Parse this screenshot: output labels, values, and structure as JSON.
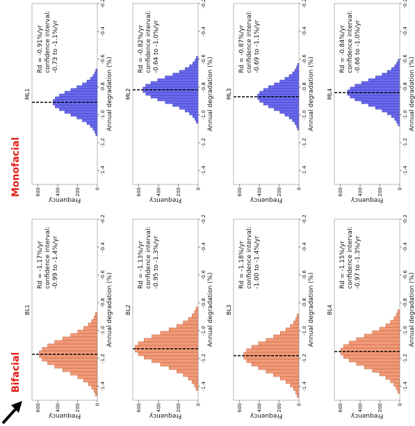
{
  "labels": {
    "bifacial": "Bifacial",
    "monofacial": "Monofacial"
  },
  "chart_data": [
    {
      "type": "histogram",
      "title": "BL1",
      "xlabel": "Annual degradation (%)",
      "ylabel": "Frequency",
      "annotation": [
        "Rd = -1.17%/yr",
        "confidence interval:",
        "-0.99 to -1.4%/yr"
      ],
      "mean": -1.17,
      "bins": [
        -1.47,
        -1.445,
        -1.42,
        -1.395,
        -1.37,
        -1.345,
        -1.32,
        -1.295,
        -1.27,
        -1.245,
        -1.22,
        -1.195,
        -1.17,
        -1.145,
        -1.12,
        -1.095,
        -1.07,
        -1.045,
        -1.02,
        -0.995,
        -0.97,
        -0.945,
        -0.92,
        -0.895,
        -0.87
      ],
      "values": [
        19,
        34,
        57,
        91,
        138,
        198,
        270,
        350,
        430,
        502,
        557,
        586,
        586,
        557,
        502,
        430,
        350,
        270,
        198,
        138,
        91,
        57,
        34,
        19
      ],
      "color": "#f29a77",
      "edgecolor": "#b8603f",
      "xlim": [
        -1.5,
        -0.2
      ],
      "xticks": [
        -1.4,
        -1.2,
        {
          "value": -1,
          "label": "-1.0"
        },
        -0.8,
        -0.6,
        -0.4,
        -0.2
      ],
      "ylim": [
        0,
        660
      ],
      "yticks": [
        0,
        200,
        400,
        600
      ]
    },
    {
      "type": "histogram",
      "title": "BL2",
      "xlabel": "Annual degradation (%)",
      "ylabel": "Frequency",
      "annotation": [
        "Rd = -1.13%/yr",
        "confidence interval:",
        "-0.95 to -1.3%/yr"
      ],
      "mean": -1.13,
      "bins": [
        -1.43,
        -1.405,
        -1.38,
        -1.355,
        -1.33,
        -1.305,
        -1.28,
        -1.255,
        -1.23,
        -1.205,
        -1.18,
        -1.155,
        -1.13,
        -1.105,
        -1.08,
        -1.055,
        -1.03,
        -1.005,
        -0.98,
        -0.955,
        -0.93,
        -0.905,
        -0.88,
        -0.855,
        -0.83
      ],
      "values": [
        21,
        37,
        62,
        99,
        150,
        215,
        293,
        380,
        467,
        545,
        604,
        636,
        636,
        604,
        545,
        467,
        380,
        293,
        215,
        150,
        99,
        62,
        37,
        21
      ],
      "color": "#f29a77",
      "edgecolor": "#b8603f",
      "xlim": [
        -1.5,
        -0.2
      ],
      "xticks": [
        -1.4,
        -1.2,
        {
          "value": -1,
          "label": "-1.0"
        },
        -0.8,
        -0.6,
        -0.4,
        -0.2
      ],
      "ylim": [
        0,
        660
      ],
      "yticks": [
        0,
        200,
        400,
        600
      ]
    },
    {
      "type": "histogram",
      "title": "BL3",
      "xlabel": "Annual degradation (%)",
      "ylabel": "Frequency",
      "annotation": [
        "Rd = -1.18%/yr",
        "confidence interval:",
        "-1.00 to -1.4%/yr"
      ],
      "mean": -1.18,
      "bins": [
        -1.48,
        -1.455,
        -1.43,
        -1.405,
        -1.38,
        -1.355,
        -1.33,
        -1.305,
        -1.28,
        -1.255,
        -1.23,
        -1.205,
        -1.18,
        -1.155,
        -1.13,
        -1.105,
        -1.08,
        -1.055,
        -1.03,
        -1.005,
        -0.98,
        -0.955,
        -0.93,
        -0.905,
        -0.88
      ],
      "values": [
        18,
        32,
        54,
        87,
        131,
        188,
        256,
        332,
        408,
        477,
        529,
        557,
        557,
        529,
        477,
        408,
        332,
        256,
        188,
        131,
        87,
        54,
        32,
        18
      ],
      "color": "#f29a77",
      "edgecolor": "#b8603f",
      "xlim": [
        -1.5,
        -0.2
      ],
      "xticks": [
        -1.4,
        -1.2,
        {
          "value": -1,
          "label": "-1.0"
        },
        -0.8,
        -0.6,
        -0.4,
        -0.2
      ],
      "ylim": [
        0,
        660
      ],
      "yticks": [
        0,
        200,
        400,
        600
      ]
    },
    {
      "type": "histogram",
      "title": "BL4",
      "xlabel": "Annual degradation (%)",
      "ylabel": "Frequency",
      "annotation": [
        "Rd = -1.15%/yr",
        "confidence interval:",
        "-0.97 to -1.3%/yr"
      ],
      "mean": -1.15,
      "bins": [
        -1.45,
        -1.425,
        -1.4,
        -1.375,
        -1.35,
        -1.325,
        -1.3,
        -1.275,
        -1.25,
        -1.225,
        -1.2,
        -1.175,
        -1.15,
        -1.125,
        -1.1,
        -1.075,
        -1.05,
        -1.025,
        -1,
        -0.975,
        -0.95,
        -0.925,
        -0.9,
        -0.875,
        -0.85
      ],
      "values": [
        20,
        35,
        58,
        93,
        140,
        202,
        275,
        356,
        437,
        511,
        566,
        596,
        596,
        566,
        511,
        437,
        356,
        275,
        202,
        140,
        93,
        58,
        35,
        20
      ],
      "color": "#f29a77",
      "edgecolor": "#b8603f",
      "xlim": [
        -1.5,
        -0.2
      ],
      "xticks": [
        -1.4,
        -1.2,
        {
          "value": -1,
          "label": "-1.0"
        },
        -0.8,
        -0.6,
        -0.4,
        -0.2
      ],
      "ylim": [
        0,
        660
      ],
      "yticks": [
        0,
        200,
        400,
        600
      ]
    },
    {
      "type": "histogram",
      "title": "ML1",
      "xlabel": "Annual degradation (%)",
      "ylabel": "Frequency",
      "annotation": [
        "Rd = -0.91%/yr",
        "confidence interval:",
        "-0.73 to -1.1%/yr"
      ],
      "mean": -0.91,
      "bins": [
        -1.15,
        -1.13,
        -1.11,
        -1.09,
        -1.07,
        -1.05,
        -1.03,
        -1.01,
        -0.99,
        -0.97,
        -0.95,
        -0.93,
        -0.91,
        -0.89,
        -0.87,
        -0.85,
        -0.83,
        -0.81,
        -0.79,
        -0.77,
        -0.75,
        -0.73,
        -0.71,
        -0.69,
        -0.67
      ],
      "values": [
        15,
        26,
        44,
        70,
        105,
        151,
        206,
        267,
        328,
        383,
        425,
        447,
        447,
        425,
        383,
        328,
        267,
        206,
        151,
        105,
        70,
        44,
        26,
        15
      ],
      "color": "#6b6bf0",
      "edgecolor": "#3434a8",
      "xlim": [
        -1.5,
        -0.2
      ],
      "xticks": [
        -1.4,
        -1.2,
        {
          "value": -1,
          "label": "-1.0"
        },
        -0.8,
        -0.6,
        -0.4,
        -0.2
      ],
      "ylim": [
        0,
        660
      ],
      "yticks": [
        0,
        200,
        400,
        600
      ]
    },
    {
      "type": "histogram",
      "title": "ML2",
      "xlabel": "Annual degradation (%)",
      "ylabel": "Frequency",
      "annotation": [
        "Rd = -0.82%/yr",
        "confidence interval:",
        "-0.64 to -1.0%/yr"
      ],
      "mean": -0.82,
      "bins": [
        -1.06,
        -1.04,
        -1.02,
        -1,
        -0.98,
        -0.96,
        -0.94,
        -0.92,
        -0.9,
        -0.88,
        -0.86,
        -0.84,
        -0.82,
        -0.8,
        -0.78,
        -0.76,
        -0.74,
        -0.72,
        -0.7,
        -0.68,
        -0.66,
        -0.64,
        -0.62,
        -0.6,
        -0.58
      ],
      "values": [
        18,
        32,
        54,
        87,
        131,
        188,
        256,
        332,
        408,
        477,
        529,
        557,
        557,
        529,
        477,
        408,
        332,
        256,
        188,
        131,
        87,
        54,
        32,
        18
      ],
      "color": "#6b6bf0",
      "edgecolor": "#3434a8",
      "xlim": [
        -1.5,
        -0.2
      ],
      "xticks": [
        -1.4,
        -1.2,
        {
          "value": -1,
          "label": "-1.0"
        },
        -0.8,
        -0.6,
        -0.4,
        -0.2
      ],
      "ylim": [
        0,
        660
      ],
      "yticks": [
        0,
        200,
        400,
        600
      ]
    },
    {
      "type": "histogram",
      "title": "ML3",
      "xlabel": "Annual degradation (%)",
      "ylabel": "Frequency",
      "annotation": [
        "Rd = -0.87%/yr",
        "confidence interval:",
        "-0.69 to -1.1%/yr"
      ],
      "mean": -0.87,
      "bins": [
        -1.11,
        -1.09,
        -1.07,
        -1.05,
        -1.03,
        -1.01,
        -0.99,
        -0.97,
        -0.95,
        -0.93,
        -0.91,
        -0.89,
        -0.87,
        -0.85,
        -0.83,
        -0.81,
        -0.79,
        -0.77,
        -0.75,
        -0.73,
        -0.71,
        -0.69,
        -0.67,
        -0.65,
        -0.63
      ],
      "values": [
        14,
        24,
        41,
        65,
        98,
        141,
        192,
        249,
        306,
        357,
        396,
        417,
        417,
        396,
        357,
        306,
        249,
        192,
        141,
        98,
        65,
        41,
        24,
        14
      ],
      "color": "#6b6bf0",
      "edgecolor": "#3434a8",
      "xlim": [
        -1.5,
        -0.2
      ],
      "xticks": [
        -1.4,
        -1.2,
        {
          "value": -1,
          "label": "-1.0"
        },
        -0.8,
        -0.6,
        -0.4,
        -0.2
      ],
      "ylim": [
        0,
        660
      ],
      "yticks": [
        0,
        200,
        400,
        600
      ]
    },
    {
      "type": "histogram",
      "title": "ML4",
      "xlabel": "Annual degradation (%)",
      "ylabel": "Frequency",
      "annotation": [
        "Rd = -0.84%/yr",
        "confidence interval:",
        "-0.66 to -1.0%/yr"
      ],
      "mean": -0.84,
      "bins": [
        -1.08,
        -1.06,
        -1.04,
        -1.02,
        -1,
        -0.98,
        -0.96,
        -0.94,
        -0.92,
        -0.9,
        -0.88,
        -0.86,
        -0.84,
        -0.82,
        -0.8,
        -0.78,
        -0.76,
        -0.74,
        -0.72,
        -0.7,
        -0.68,
        -0.66,
        -0.64,
        -0.62,
        -0.6
      ],
      "values": [
        17,
        31,
        51,
        82,
        124,
        178,
        243,
        314,
        386,
        451,
        500,
        527,
        527,
        500,
        451,
        386,
        314,
        243,
        178,
        124,
        82,
        51,
        31,
        17
      ],
      "color": "#6b6bf0",
      "edgecolor": "#3434a8",
      "xlim": [
        -1.5,
        -0.2
      ],
      "xticks": [
        -1.4,
        -1.2,
        {
          "value": -1,
          "label": "-1.0"
        },
        -0.8,
        -0.6,
        -0.4,
        -0.2
      ],
      "ylim": [
        0,
        660
      ],
      "yticks": [
        0,
        200,
        400,
        600
      ]
    }
  ]
}
